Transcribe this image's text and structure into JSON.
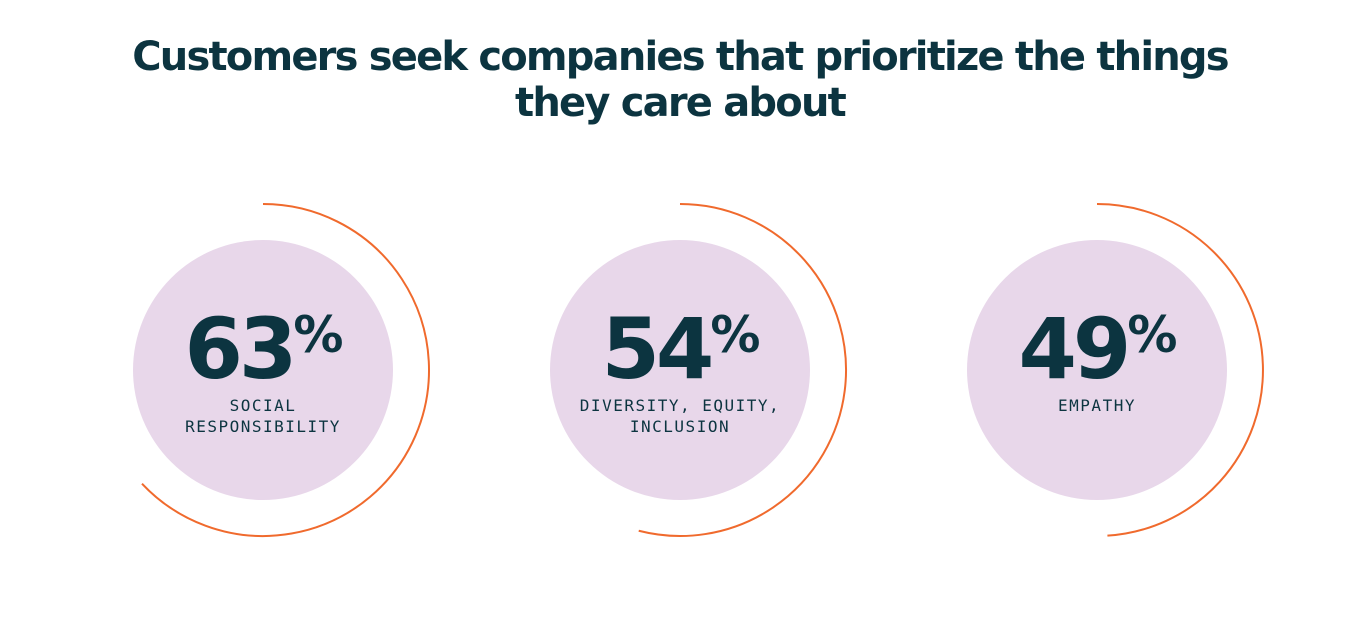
{
  "chart_data": {
    "type": "radial",
    "title": "Customers seek companies that prioritize the things they care about",
    "categories": [
      "SOCIAL\nRESPONSIBILITY",
      "DIVERSITY, EQUITY,\nINCLUSION",
      "EMPATHY"
    ],
    "values": [
      63,
      54,
      49
    ],
    "value_labels": [
      "63",
      "54",
      "49"
    ],
    "unit": "%",
    "max": 100,
    "colors": {
      "arc": "#f06a2d",
      "disc": "#e8d7ea",
      "text": "#0c3440"
    }
  }
}
